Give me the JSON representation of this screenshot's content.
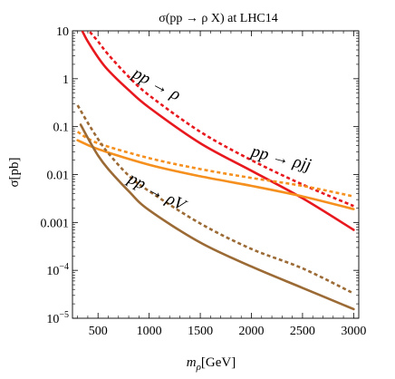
{
  "chart_data": {
    "type": "line",
    "title": "σ(pp → ρ X) at LHC14",
    "xlabel": "m",
    "xlabel_sub": "ρ",
    "xlabel_unit": "[GeV]",
    "ylabel": "σ[pb]",
    "xlim": [
      250,
      3050
    ],
    "ylim": [
      1e-05,
      10
    ],
    "yscale": "log",
    "grid": false,
    "x_ticks": [
      {
        "value": 500,
        "label": "500"
      },
      {
        "value": 1000,
        "label": "1000"
      },
      {
        "value": 1500,
        "label": "1500"
      },
      {
        "value": 2000,
        "label": "2000"
      },
      {
        "value": 2500,
        "label": "2500"
      },
      {
        "value": 3000,
        "label": "3000"
      }
    ],
    "y_ticks": [
      {
        "value": 10,
        "label": "10"
      },
      {
        "value": 1,
        "label": "1"
      },
      {
        "value": 0.1,
        "label": "0.1"
      },
      {
        "value": 0.01,
        "label": "0.01"
      },
      {
        "value": 0.001,
        "label": "0.001"
      },
      {
        "value": 0.0001,
        "label": "10",
        "sup": "−4"
      },
      {
        "value": 1e-05,
        "label": "10",
        "sup": "−5"
      }
    ],
    "annotations": [
      {
        "text": "pp → ρ",
        "x": 1050,
        "y": 0.62
      },
      {
        "text": "pp → ρjj",
        "x": 2280,
        "y": 0.0172
      },
      {
        "text": "pp → ρV",
        "x": 1050,
        "y": 0.0035
      }
    ],
    "series": [
      {
        "color": "#e8191e",
        "dash": "solid",
        "x": [
          350,
          400,
          500,
          600,
          800,
          1000,
          1500,
          2000,
          2500,
          3000
        ],
        "y": [
          9.5,
          6.0,
          2.8,
          1.5,
          0.58,
          0.25,
          0.045,
          0.012,
          0.0032,
          0.0007
        ]
      },
      {
        "color": "#e8191e",
        "dash": "dotted",
        "x": [
          420,
          500,
          600,
          800,
          1000,
          1500,
          2000,
          2500,
          3000
        ],
        "y": [
          9.5,
          6.0,
          3.2,
          1.1,
          0.45,
          0.078,
          0.02,
          0.0062,
          0.0022
        ]
      },
      {
        "color": "#f5901e",
        "dash": "solid",
        "x": [
          300,
          500,
          1000,
          1500,
          2000,
          2500,
          3000
        ],
        "y": [
          0.052,
          0.034,
          0.016,
          0.0092,
          0.0058,
          0.0035,
          0.0019
        ]
      },
      {
        "color": "#f5901e",
        "dash": "dotted",
        "x": [
          300,
          500,
          1000,
          1500,
          2000,
          2500,
          3000
        ],
        "y": [
          0.078,
          0.045,
          0.022,
          0.013,
          0.0085,
          0.0058,
          0.0035
        ]
      },
      {
        "color": "#9b6a35",
        "dash": "solid",
        "x": [
          330,
          400,
          500,
          600,
          800,
          1000,
          1500,
          2000,
          2500,
          3000
        ],
        "y": [
          0.11,
          0.058,
          0.025,
          0.013,
          0.0045,
          0.0018,
          0.00038,
          0.00012,
          4.3e-05,
          1.55e-05
        ]
      },
      {
        "color": "#9b6a35",
        "dash": "dotted",
        "x": [
          300,
          400,
          500,
          600,
          800,
          1000,
          1500,
          2000,
          2500,
          3000
        ],
        "y": [
          0.28,
          0.12,
          0.055,
          0.028,
          0.0095,
          0.0045,
          0.00095,
          0.00028,
          0.00011,
          3.3e-05
        ]
      }
    ]
  }
}
